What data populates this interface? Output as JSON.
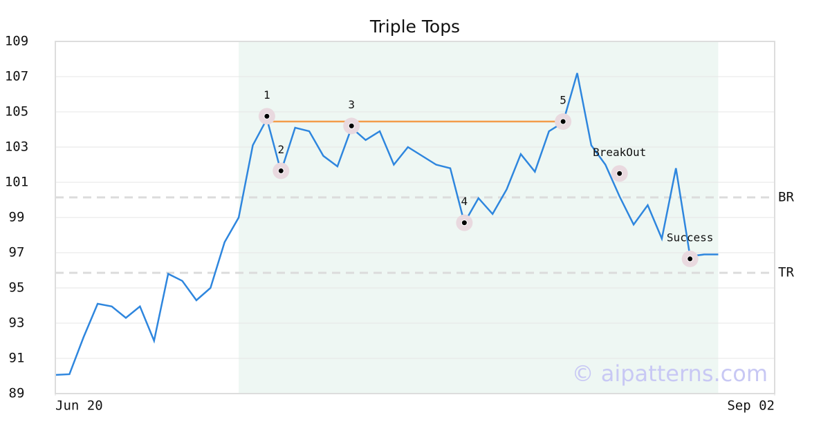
{
  "chart_data": {
    "type": "line",
    "title": "Triple Tops",
    "x": [
      0,
      1,
      2,
      3,
      4,
      5,
      6,
      7,
      8,
      9,
      10,
      11,
      12,
      13,
      14,
      15,
      16,
      17,
      18,
      19,
      20,
      21,
      22,
      23,
      24,
      25,
      26,
      27,
      28,
      29,
      30,
      31,
      32,
      33,
      34,
      35,
      36,
      37,
      38,
      39,
      40,
      41,
      42,
      43,
      44,
      45,
      46,
      47
    ],
    "values": [
      90.06,
      90.1,
      92.2,
      94.1,
      93.95,
      93.3,
      93.95,
      92.0,
      95.8,
      95.4,
      94.3,
      95.0,
      97.6,
      99.0,
      103.1,
      104.6,
      101.6,
      104.1,
      103.9,
      102.5,
      101.9,
      104.1,
      103.4,
      103.9,
      102.0,
      103.0,
      102.5,
      102.0,
      101.8,
      98.7,
      100.1,
      99.2,
      100.6,
      102.6,
      101.6,
      103.9,
      104.4,
      107.2,
      103.1,
      102.0,
      100.2,
      98.6,
      99.7,
      97.8,
      101.8,
      96.8,
      96.9,
      96.9
    ],
    "color": "#2e86de",
    "xlim": [
      0,
      51
    ],
    "xticks": [
      {
        "value": 0,
        "label": "Jun 20"
      },
      {
        "value": 51,
        "label": "Sep 02"
      }
    ],
    "ylim": [
      89,
      109
    ],
    "yticks": [
      89,
      91,
      93,
      95,
      97,
      99,
      101,
      103,
      105,
      107,
      109
    ],
    "grid": true,
    "highlight_x": [
      13,
      47
    ],
    "highlight_color": "#eef7f3",
    "points": [
      {
        "label": "1",
        "x": 15,
        "y": 104.75
      },
      {
        "label": "2",
        "x": 16,
        "y": 101.65
      },
      {
        "label": "3",
        "x": 21,
        "y": 104.2
      },
      {
        "label": "4",
        "x": 29,
        "y": 98.7
      },
      {
        "label": "5",
        "x": 36,
        "y": 104.45
      },
      {
        "label": "BreakOut",
        "x": 40,
        "y": 101.5
      },
      {
        "label": "Success",
        "x": 45,
        "y": 96.65
      }
    ],
    "resistance": {
      "x": [
        15,
        36
      ],
      "value": 104.45,
      "color": "#f39c4a"
    },
    "levels": [
      {
        "label": "BR",
        "value": 100.14
      },
      {
        "label": "TR",
        "value": 95.86
      }
    ],
    "watermark": "© aipatterns.com"
  }
}
